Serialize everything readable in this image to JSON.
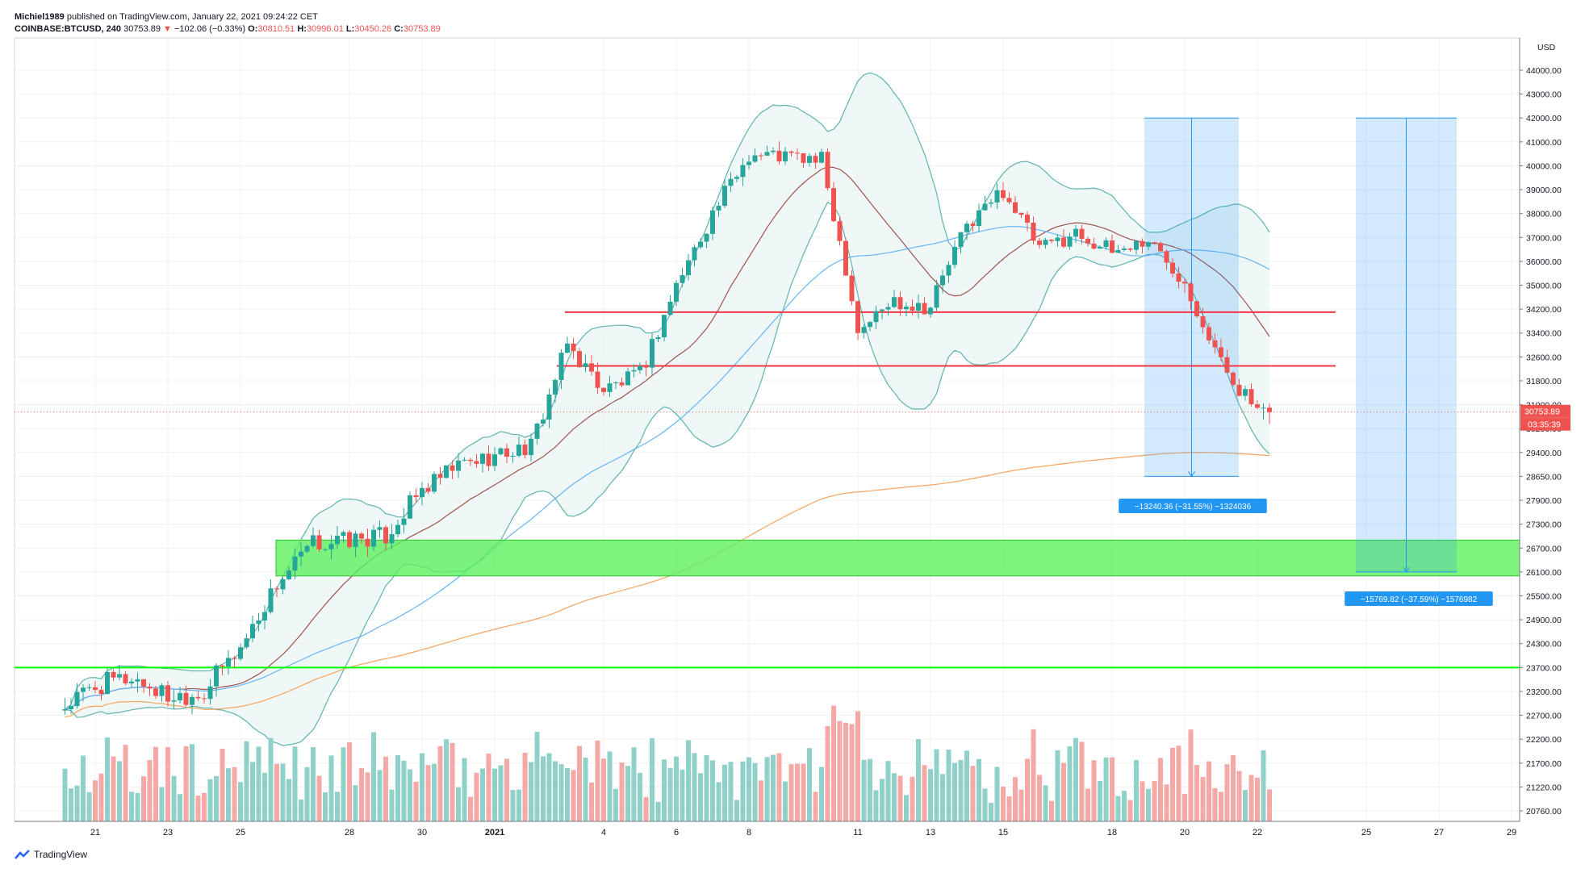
{
  "header": {
    "user": "Michiel1989",
    "published": "published on TradingView.com, January 22, 2021 09:24:22 CET",
    "symbol": "COINBASE:BTCUSD, 240",
    "last": "30753.89",
    "arrow": "▼",
    "change": "−102.06 (−0.33%)",
    "o_label": "O:",
    "o_value": "30810.51",
    "h_label": "H:",
    "h_value": "30996.01",
    "l_label": "L:",
    "l_value": "30450.26",
    "c_label": "C:",
    "c_value": "30753.89"
  },
  "footer": {
    "brand": "TradingView"
  },
  "chart_data": {
    "type": "candlestick",
    "currency": "USD",
    "y_ticks": [
      20760,
      21220,
      21700,
      22200,
      22700,
      23200,
      23700,
      24300,
      24900,
      25500,
      26100,
      26700,
      27300,
      27900,
      28650,
      29400,
      30200,
      31000,
      31800,
      32600,
      33400,
      34200,
      35000,
      36000,
      37000,
      38000,
      39000,
      40000,
      41000,
      42000,
      43000,
      44000
    ],
    "x_ticks": [
      "21",
      "23",
      "25",
      "28",
      "30",
      "2021",
      "4",
      "6",
      "8",
      "11",
      "13",
      "15",
      "18",
      "20",
      "22",
      "25",
      "27",
      "29"
    ],
    "last_price_label": "30753.89",
    "countdown_label": "03:35:39",
    "close_path": [
      [
        "Dec 20",
        22800
      ],
      [
        "Dec 21",
        23300
      ],
      [
        "Dec 22",
        23500
      ],
      [
        "Dec 23",
        23100
      ],
      [
        "Dec 24",
        23200
      ],
      [
        "Dec 25",
        24200
      ],
      [
        "Dec 26",
        25800
      ],
      [
        "Dec 27",
        26800
      ],
      [
        "Dec 28",
        26900
      ],
      [
        "Dec 29",
        27000
      ],
      [
        "Dec 30",
        28200
      ],
      [
        "Dec 31",
        29000
      ],
      [
        "Jan 1",
        29300
      ],
      [
        "Jan 2",
        29600
      ],
      [
        "Jan 3",
        33000
      ],
      [
        "Jan 4",
        31500
      ],
      [
        "Jan 5",
        32000
      ],
      [
        "Jan 6",
        35000
      ],
      [
        "Jan 7",
        38000
      ],
      [
        "Jan 8",
        40500
      ],
      [
        "Jan 9",
        40400
      ],
      [
        "Jan 10",
        40200
      ],
      [
        "Jan 11",
        33500
      ],
      [
        "Jan 12",
        34500
      ],
      [
        "Jan 13",
        34300
      ],
      [
        "Jan 14",
        37500
      ],
      [
        "Jan 15",
        39000
      ],
      [
        "Jan 16",
        36500
      ],
      [
        "Jan 17",
        37200
      ],
      [
        "Jan 18",
        36400
      ],
      [
        "Jan 19",
        36900
      ],
      [
        "Jan 20",
        35200
      ],
      [
        "Jan 21",
        32400
      ],
      [
        "Jan 22",
        30753.89
      ]
    ],
    "horizontal_levels": [
      34100,
      32300,
      23700
    ],
    "support_zone": [
      26000,
      26900
    ],
    "projections": [
      {
        "label": "−13240.36 (−31.55%) −1324036"
      },
      {
        "label": "−15769.82 (−37.59%) −1576982"
      }
    ],
    "colors": {
      "up": "#26a69a",
      "down": "#ef5350",
      "band": "#c5e6e4",
      "ma_long": "#f7a35c",
      "ma_mid": "#64b5f6",
      "ma_short": "#a0524d",
      "level": "#f23645",
      "support": "#00ff00",
      "projection": "#2196f3"
    }
  }
}
